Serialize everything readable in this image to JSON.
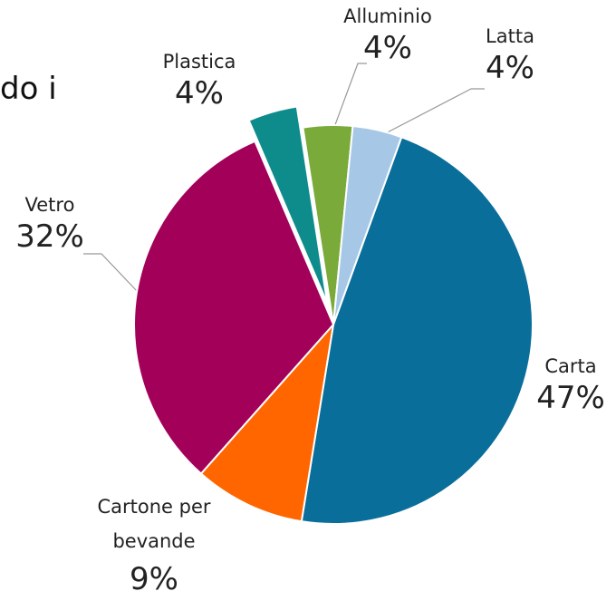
{
  "fragment": "do i",
  "chart_data": {
    "type": "pie",
    "categories": [
      "Carta",
      "Cartone per bevande",
      "Vetro",
      "Plastica",
      "Alluminio",
      "Latta"
    ],
    "values": [
      47,
      9,
      32,
      4,
      4,
      4
    ],
    "value_labels": [
      "47%",
      "9%",
      "32%",
      "4%",
      "4%",
      "4%"
    ],
    "colors": [
      "#0a6e9b",
      "#ff6600",
      "#a3005a",
      "#0e8c8c",
      "#7aaa3a",
      "#a6c8e6"
    ],
    "exploded": [
      "Plastica"
    ]
  }
}
